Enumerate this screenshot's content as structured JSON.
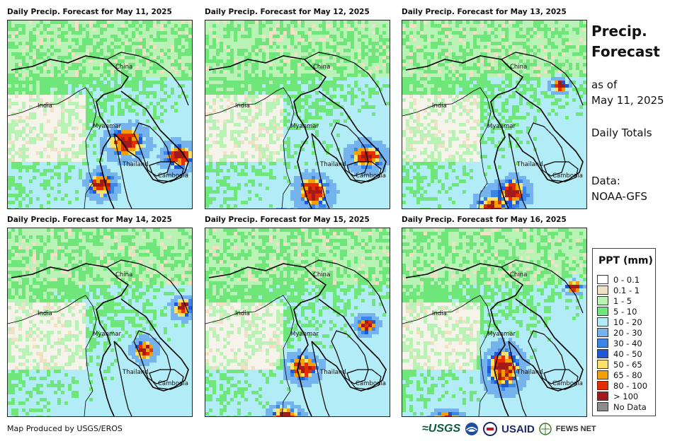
{
  "panels": [
    {
      "title": "Daily Precip. Forecast for May 11, 2025",
      "labels": {
        "china": "China",
        "india": "India",
        "myanmar": "Myanmar",
        "thailand": "Thailand",
        "cambodia": "Cambodia"
      }
    },
    {
      "title": "Daily Precip. Forecast for May 12, 2025",
      "labels": {
        "china": "China",
        "india": "India",
        "myanmar": "Myanmar",
        "thailand": "Thailand",
        "cambodia": "Cambodia"
      }
    },
    {
      "title": "Daily Precip. Forecast for May 13, 2025",
      "labels": {
        "china": "China",
        "india": "India",
        "myanmar": "Myanmar",
        "thailand": "Thailand",
        "cambodia": "Cambodia"
      }
    },
    {
      "title": "Daily Precip. Forecast for May 14, 2025",
      "labels": {
        "china": "China",
        "india": "India",
        "myanmar": "Myanmar",
        "thailand": "Thailand",
        "cambodia": "Cambodia"
      }
    },
    {
      "title": "Daily Precip. Forecast for May 15, 2025",
      "labels": {
        "china": "China",
        "india": "India",
        "myanmar": "Myanmar",
        "thailand": "Thailand",
        "cambodia": "Cambodia"
      }
    },
    {
      "title": "Daily Precip. Forecast for May 16, 2025",
      "labels": {
        "china": "China",
        "india": "India",
        "myanmar": "Myanmar",
        "thailand": "Thailand",
        "cambodia": "Cambodia"
      }
    }
  ],
  "side": {
    "title_line1": "Precip.",
    "title_line2": "Forecast",
    "asof_line1": "as of",
    "asof_line2": "May 11, 2025",
    "totals": "Daily Totals",
    "data_line1": "Data:",
    "data_line2": "NOAA-GFS"
  },
  "legend": {
    "title": "PPT (mm)",
    "items": [
      {
        "label": "0 - 0.1",
        "color": "#ffffff"
      },
      {
        "label": "0.1 - 1",
        "color": "#efe1c4"
      },
      {
        "label": "1 - 5",
        "color": "#b9f2b5"
      },
      {
        "label": "5 - 10",
        "color": "#6ee67a"
      },
      {
        "label": "10 - 20",
        "color": "#b2ecf7"
      },
      {
        "label": "20 - 30",
        "color": "#74b3ee"
      },
      {
        "label": "30 - 40",
        "color": "#3a86e8"
      },
      {
        "label": "40 - 50",
        "color": "#1e57d8"
      },
      {
        "label": "50 - 65",
        "color": "#fde26a"
      },
      {
        "label": "65 - 80",
        "color": "#f5a000"
      },
      {
        "label": "80 - 100",
        "color": "#e52e00"
      },
      {
        "label": "> 100",
        "color": "#a31a1a"
      },
      {
        "label": "No Data",
        "color": "#8c8c8c"
      }
    ]
  },
  "credit": "Map Produced by USGS/EROS",
  "logos": {
    "usgs": "≈USGS",
    "usaid": "USAID",
    "fews": "FEWS NET"
  },
  "icons": [
    "noaa-logo-icon",
    "usaid-seal-icon",
    "fews-net-globe-icon"
  ]
}
